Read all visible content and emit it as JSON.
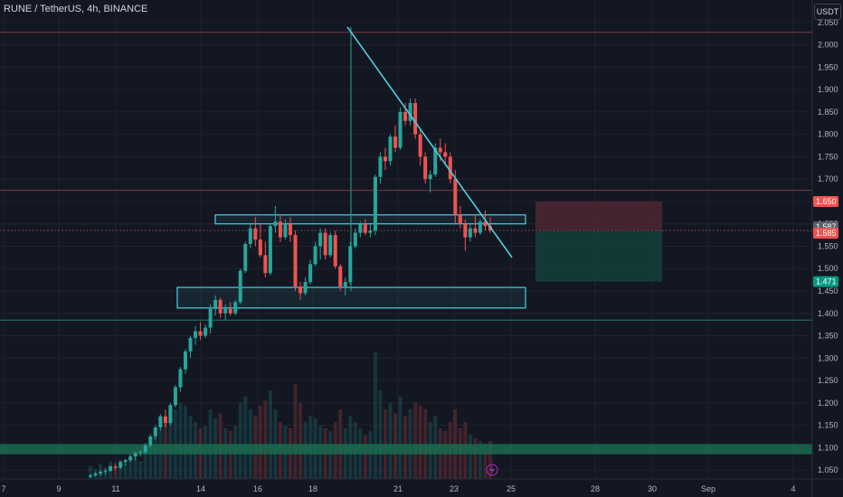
{
  "header": {
    "title": "RUNE / TetherUS, 4h, BINANCE",
    "currency": "USDT"
  },
  "colors": {
    "background": "#131722",
    "grid": "#1e222d",
    "up": "#26a69a",
    "down": "#ef5350",
    "trendline": "#4dd0e1",
    "box": "#4dd0e1",
    "stop_zone": "#4a2630",
    "target_zone": "#143d3a",
    "support_band": "#1b6b4f"
  },
  "chart_data": {
    "type": "candlestick",
    "ylim": [
      1.03,
      2.08
    ],
    "y_ticks": [
      "2.050",
      "2.000",
      "1.950",
      "1.900",
      "1.850",
      "1.800",
      "1.750",
      "1.700",
      "1.650",
      "1.600",
      "1.550",
      "1.500",
      "1.450",
      "1.400",
      "1.350",
      "1.300",
      "1.250",
      "1.200",
      "1.150",
      "1.100",
      "1.050"
    ],
    "x_ticks": [
      "7",
      "9",
      "11",
      "14",
      "16",
      "18",
      "21",
      "23",
      "25",
      "28",
      "30",
      "Sep",
      "4"
    ],
    "price_tags": [
      {
        "label": "1.650",
        "value": 1.65,
        "color": "#ef5350"
      },
      {
        "label": "1.587",
        "value": 1.587,
        "color": "#5d606b"
      },
      {
        "label": "1.585",
        "value": 1.585,
        "color": "#ef5350"
      },
      {
        "label": "1.471",
        "value": 1.471,
        "color": "#089981"
      }
    ],
    "horizontal_lines": [
      {
        "value": 2.028,
        "color": "#7a3a44"
      },
      {
        "value": 1.675,
        "color": "#7a3a44"
      },
      {
        "value": 1.585,
        "color": "#7a3a44",
        "dashed": true
      },
      {
        "value": 1.385,
        "color": "#1f7a6e"
      }
    ],
    "zones": {
      "upper_box": {
        "top": 1.62,
        "bottom": 1.6
      },
      "lower_box": {
        "top": 1.458,
        "bottom": 1.412
      },
      "support_band": {
        "top": 1.108,
        "bottom": 1.085
      },
      "stop_zone": {
        "top": 1.65,
        "bottom": 1.585
      },
      "target_zone": {
        "top": 1.585,
        "bottom": 1.471
      }
    },
    "trendline": {
      "from": 2.04,
      "to": 1.525
    },
    "candles": [
      [
        1.035,
        1.04,
        1.032,
        1.038
      ],
      [
        1.038,
        1.045,
        1.035,
        1.042
      ],
      [
        1.042,
        1.05,
        1.038,
        1.046
      ],
      [
        1.046,
        1.052,
        1.04,
        1.048
      ],
      [
        1.048,
        1.06,
        1.046,
        1.058
      ],
      [
        1.058,
        1.065,
        1.05,
        1.055
      ],
      [
        1.055,
        1.07,
        1.052,
        1.068
      ],
      [
        1.068,
        1.075,
        1.06,
        1.072
      ],
      [
        1.072,
        1.085,
        1.068,
        1.08
      ],
      [
        1.08,
        1.09,
        1.072,
        1.088
      ],
      [
        1.088,
        1.095,
        1.08,
        1.09
      ],
      [
        1.09,
        1.11,
        1.085,
        1.105
      ],
      [
        1.105,
        1.13,
        1.1,
        1.125
      ],
      [
        1.125,
        1.15,
        1.118,
        1.145
      ],
      [
        1.145,
        1.175,
        1.138,
        1.17
      ],
      [
        1.17,
        1.185,
        1.145,
        1.155
      ],
      [
        1.155,
        1.2,
        1.15,
        1.195
      ],
      [
        1.195,
        1.24,
        1.19,
        1.235
      ],
      [
        1.235,
        1.28,
        1.225,
        1.275
      ],
      [
        1.275,
        1.32,
        1.265,
        1.315
      ],
      [
        1.315,
        1.35,
        1.3,
        1.345
      ],
      [
        1.345,
        1.372,
        1.33,
        1.36
      ],
      [
        1.36,
        1.38,
        1.34,
        1.35
      ],
      [
        1.35,
        1.375,
        1.345,
        1.368
      ],
      [
        1.368,
        1.42,
        1.355,
        1.41
      ],
      [
        1.41,
        1.44,
        1.395,
        1.43
      ],
      [
        1.43,
        1.435,
        1.39,
        1.4
      ],
      [
        1.4,
        1.42,
        1.385,
        1.41
      ],
      [
        1.41,
        1.425,
        1.395,
        1.4
      ],
      [
        1.4,
        1.43,
        1.395,
        1.425
      ],
      [
        1.425,
        1.5,
        1.42,
        1.495
      ],
      [
        1.495,
        1.56,
        1.49,
        1.555
      ],
      [
        1.555,
        1.6,
        1.545,
        1.59
      ],
      [
        1.59,
        1.615,
        1.55,
        1.565
      ],
      [
        1.565,
        1.6,
        1.525,
        1.53
      ],
      [
        1.53,
        1.56,
        1.48,
        1.49
      ],
      [
        1.49,
        1.6,
        1.485,
        1.595
      ],
      [
        1.595,
        1.64,
        1.58,
        1.605
      ],
      [
        1.605,
        1.62,
        1.56,
        1.57
      ],
      [
        1.57,
        1.61,
        1.565,
        1.6
      ],
      [
        1.6,
        1.615,
        1.56,
        1.575
      ],
      [
        1.575,
        1.585,
        1.45,
        1.46
      ],
      [
        1.46,
        1.47,
        1.43,
        1.445
      ],
      [
        1.445,
        1.48,
        1.44,
        1.47
      ],
      [
        1.47,
        1.52,
        1.465,
        1.51
      ],
      [
        1.51,
        1.56,
        1.505,
        1.55
      ],
      [
        1.55,
        1.59,
        1.52,
        1.58
      ],
      [
        1.58,
        1.59,
        1.52,
        1.53
      ],
      [
        1.53,
        1.58,
        1.525,
        1.575
      ],
      [
        1.575,
        1.585,
        1.5,
        1.505
      ],
      [
        1.505,
        1.51,
        1.45,
        1.46
      ],
      [
        1.46,
        1.48,
        1.44,
        1.47
      ],
      [
        1.47,
        1.56,
        1.465,
        1.55
      ],
      [
        1.55,
        1.59,
        1.545,
        1.58
      ],
      [
        1.58,
        1.605,
        1.57,
        1.6
      ],
      [
        1.6,
        1.61,
        1.575,
        1.58
      ],
      [
        1.58,
        1.6,
        1.57,
        1.585
      ],
      [
        1.585,
        1.71,
        1.575,
        1.705
      ],
      [
        1.705,
        1.76,
        1.69,
        1.75
      ],
      [
        1.75,
        1.77,
        1.72,
        1.74
      ],
      [
        1.74,
        1.8,
        1.73,
        1.795
      ],
      [
        1.795,
        1.82,
        1.76,
        1.77
      ],
      [
        1.77,
        1.86,
        1.765,
        1.85
      ],
      [
        1.85,
        1.87,
        1.82,
        1.83
      ],
      [
        1.83,
        1.88,
        1.82,
        1.87
      ],
      [
        1.87,
        1.88,
        1.79,
        1.8
      ],
      [
        1.8,
        1.81,
        1.73,
        1.75
      ],
      [
        1.75,
        1.76,
        1.69,
        1.7
      ],
      [
        1.7,
        1.72,
        1.67,
        1.71
      ],
      [
        1.71,
        1.78,
        1.705,
        1.77
      ],
      [
        1.77,
        1.79,
        1.74,
        1.76
      ],
      [
        1.76,
        1.78,
        1.73,
        1.75
      ],
      [
        1.75,
        1.76,
        1.69,
        1.7
      ],
      [
        1.7,
        1.72,
        1.6,
        1.62
      ],
      [
        1.62,
        1.64,
        1.59,
        1.6
      ],
      [
        1.6,
        1.61,
        1.54,
        1.57
      ],
      [
        1.57,
        1.6,
        1.56,
        1.59
      ],
      [
        1.59,
        1.62,
        1.57,
        1.58
      ],
      [
        1.58,
        1.61,
        1.575,
        1.605
      ],
      [
        1.605,
        1.63,
        1.585,
        1.595
      ],
      [
        1.595,
        1.615,
        1.58,
        1.585
      ]
    ],
    "volumes": [
      0.1,
      0.08,
      0.12,
      0.09,
      0.14,
      0.1,
      0.15,
      0.12,
      0.18,
      0.16,
      0.14,
      0.25,
      0.3,
      0.35,
      0.4,
      0.45,
      0.5,
      0.55,
      0.6,
      0.58,
      0.5,
      0.45,
      0.4,
      0.42,
      0.55,
      0.48,
      0.52,
      0.4,
      0.38,
      0.42,
      0.6,
      0.65,
      0.55,
      0.5,
      0.58,
      0.62,
      0.7,
      0.55,
      0.45,
      0.42,
      0.4,
      0.75,
      0.6,
      0.45,
      0.5,
      0.48,
      0.42,
      0.4,
      0.38,
      0.45,
      0.55,
      0.4,
      0.5,
      0.45,
      0.4,
      0.35,
      0.38,
      1.0,
      0.7,
      0.55,
      0.6,
      0.52,
      0.65,
      0.5,
      0.55,
      0.6,
      0.58,
      0.55,
      0.45,
      0.5,
      0.4,
      0.38,
      0.45,
      0.55,
      0.4,
      0.45,
      0.35,
      0.32,
      0.3,
      0.28,
      0.3
    ]
  }
}
